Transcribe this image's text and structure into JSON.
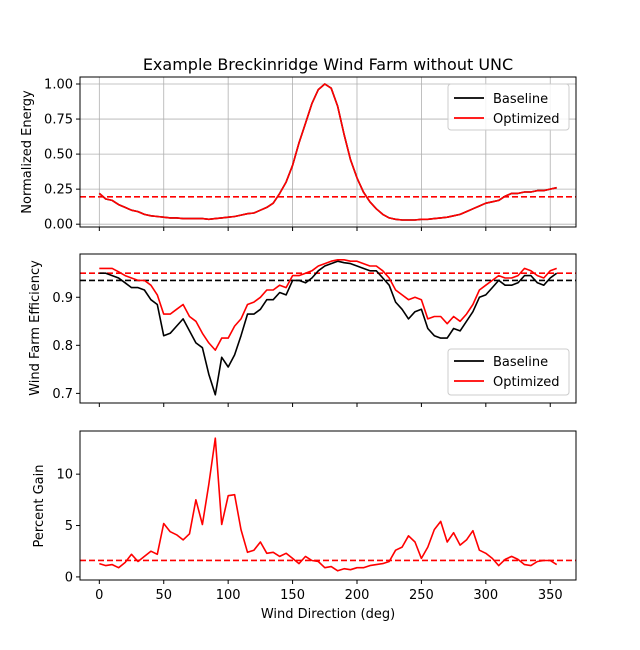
{
  "title": "Example Breckinridge Wind Farm without UNC",
  "colors": {
    "baseline": "#000000",
    "optimized": "#ff0000",
    "grid": "#b0b0b0"
  },
  "chart_data": [
    {
      "type": "line",
      "ylabel": "Normalized Energy",
      "xlim": [
        -15,
        370
      ],
      "ylim": [
        -0.02,
        1.05
      ],
      "yticks": [
        0.0,
        0.25,
        0.5,
        0.75,
        1.0
      ],
      "ytick_labels": [
        "0.00",
        "0.25",
        "0.50",
        "0.75",
        "1.00"
      ],
      "grid": true,
      "legend": "top-right",
      "hline_baseline": null,
      "hline_optimized": 0.195,
      "x": [
        0,
        5,
        10,
        15,
        20,
        25,
        30,
        35,
        40,
        45,
        50,
        55,
        60,
        65,
        70,
        75,
        80,
        85,
        90,
        95,
        100,
        105,
        110,
        115,
        120,
        125,
        130,
        135,
        140,
        145,
        150,
        155,
        160,
        165,
        170,
        175,
        180,
        185,
        190,
        195,
        200,
        205,
        210,
        215,
        220,
        225,
        230,
        235,
        240,
        245,
        250,
        255,
        260,
        265,
        270,
        275,
        280,
        285,
        290,
        295,
        300,
        305,
        310,
        315,
        320,
        325,
        330,
        335,
        340,
        345,
        350,
        355
      ],
      "series": [
        {
          "name": "Baseline",
          "color": "#000000",
          "values": [
            0.22,
            0.18,
            0.17,
            0.14,
            0.12,
            0.1,
            0.09,
            0.07,
            0.06,
            0.055,
            0.05,
            0.045,
            0.045,
            0.04,
            0.04,
            0.04,
            0.04,
            0.035,
            0.04,
            0.045,
            0.05,
            0.055,
            0.065,
            0.075,
            0.08,
            0.1,
            0.12,
            0.15,
            0.22,
            0.3,
            0.42,
            0.58,
            0.72,
            0.86,
            0.96,
            1.0,
            0.97,
            0.84,
            0.64,
            0.46,
            0.33,
            0.23,
            0.16,
            0.11,
            0.07,
            0.045,
            0.035,
            0.03,
            0.03,
            0.03,
            0.035,
            0.035,
            0.04,
            0.045,
            0.05,
            0.06,
            0.07,
            0.09,
            0.11,
            0.13,
            0.15,
            0.16,
            0.17,
            0.2,
            0.22,
            0.22,
            0.23,
            0.23,
            0.24,
            0.24,
            0.25,
            0.26
          ]
        },
        {
          "name": "Optimized",
          "color": "#ff0000",
          "values": [
            0.22,
            0.18,
            0.17,
            0.14,
            0.12,
            0.1,
            0.09,
            0.07,
            0.06,
            0.055,
            0.05,
            0.045,
            0.045,
            0.04,
            0.04,
            0.04,
            0.04,
            0.035,
            0.04,
            0.045,
            0.05,
            0.055,
            0.065,
            0.075,
            0.08,
            0.1,
            0.12,
            0.15,
            0.22,
            0.3,
            0.42,
            0.58,
            0.72,
            0.86,
            0.96,
            1.0,
            0.97,
            0.84,
            0.64,
            0.46,
            0.33,
            0.23,
            0.16,
            0.11,
            0.07,
            0.045,
            0.035,
            0.03,
            0.03,
            0.03,
            0.035,
            0.035,
            0.04,
            0.045,
            0.05,
            0.06,
            0.07,
            0.09,
            0.11,
            0.13,
            0.15,
            0.16,
            0.17,
            0.2,
            0.22,
            0.22,
            0.23,
            0.23,
            0.24,
            0.24,
            0.25,
            0.26
          ]
        }
      ]
    },
    {
      "type": "line",
      "ylabel": "Wind Farm Efficiency",
      "xlim": [
        -15,
        370
      ],
      "ylim": [
        0.68,
        0.99
      ],
      "yticks": [
        0.7,
        0.8,
        0.9
      ],
      "ytick_labels": [
        "0.7",
        "0.8",
        "0.9"
      ],
      "grid": false,
      "legend": "bottom-right",
      "hline_baseline": 0.935,
      "hline_optimized": 0.95,
      "x": [
        0,
        5,
        10,
        15,
        20,
        25,
        30,
        35,
        40,
        45,
        50,
        55,
        60,
        65,
        70,
        75,
        80,
        85,
        90,
        95,
        100,
        105,
        110,
        115,
        120,
        125,
        130,
        135,
        140,
        145,
        150,
        155,
        160,
        165,
        170,
        175,
        180,
        185,
        190,
        195,
        200,
        205,
        210,
        215,
        220,
        225,
        230,
        235,
        240,
        245,
        250,
        255,
        260,
        265,
        270,
        275,
        280,
        285,
        290,
        295,
        300,
        305,
        310,
        315,
        320,
        325,
        330,
        335,
        340,
        345,
        350,
        355
      ],
      "series": [
        {
          "name": "Baseline",
          "color": "#000000",
          "values": [
            0.95,
            0.95,
            0.945,
            0.94,
            0.93,
            0.92,
            0.92,
            0.915,
            0.895,
            0.885,
            0.82,
            0.825,
            0.84,
            0.855,
            0.83,
            0.805,
            0.795,
            0.74,
            0.697,
            0.775,
            0.755,
            0.78,
            0.82,
            0.865,
            0.865,
            0.875,
            0.895,
            0.895,
            0.91,
            0.905,
            0.935,
            0.935,
            0.93,
            0.94,
            0.955,
            0.965,
            0.97,
            0.975,
            0.972,
            0.97,
            0.965,
            0.96,
            0.955,
            0.955,
            0.94,
            0.925,
            0.89,
            0.875,
            0.855,
            0.87,
            0.875,
            0.835,
            0.82,
            0.815,
            0.815,
            0.835,
            0.83,
            0.85,
            0.87,
            0.9,
            0.905,
            0.92,
            0.935,
            0.925,
            0.925,
            0.93,
            0.945,
            0.945,
            0.93,
            0.925,
            0.94,
            0.95
          ]
        },
        {
          "name": "Optimized",
          "color": "#ff0000",
          "values": [
            0.96,
            0.96,
            0.96,
            0.953,
            0.945,
            0.94,
            0.935,
            0.935,
            0.925,
            0.905,
            0.865,
            0.865,
            0.875,
            0.885,
            0.86,
            0.85,
            0.825,
            0.805,
            0.79,
            0.815,
            0.815,
            0.84,
            0.855,
            0.885,
            0.89,
            0.9,
            0.915,
            0.915,
            0.925,
            0.92,
            0.945,
            0.945,
            0.95,
            0.955,
            0.965,
            0.97,
            0.975,
            0.978,
            0.978,
            0.975,
            0.975,
            0.97,
            0.965,
            0.965,
            0.955,
            0.94,
            0.915,
            0.905,
            0.895,
            0.9,
            0.895,
            0.855,
            0.86,
            0.86,
            0.845,
            0.86,
            0.85,
            0.865,
            0.885,
            0.915,
            0.925,
            0.935,
            0.945,
            0.94,
            0.94,
            0.945,
            0.96,
            0.955,
            0.945,
            0.94,
            0.955,
            0.96
          ]
        }
      ]
    },
    {
      "type": "line",
      "ylabel": "Percent Gain",
      "xlabel": "Wind Direction (deg)",
      "xlim": [
        -15,
        370
      ],
      "ylim": [
        -0.3,
        14.2
      ],
      "yticks": [
        0,
        5,
        10
      ],
      "ytick_labels": [
        "0",
        "5",
        "10"
      ],
      "xticks": [
        0,
        50,
        100,
        150,
        200,
        250,
        300,
        350
      ],
      "xtick_labels": [
        "0",
        "50",
        "100",
        "150",
        "200",
        "250",
        "300",
        "350"
      ],
      "grid": false,
      "legend": null,
      "hline_optimized": 1.6,
      "x": [
        0,
        5,
        10,
        15,
        20,
        25,
        30,
        35,
        40,
        45,
        50,
        55,
        60,
        65,
        70,
        75,
        80,
        85,
        90,
        95,
        100,
        105,
        110,
        115,
        120,
        125,
        130,
        135,
        140,
        145,
        150,
        155,
        160,
        165,
        170,
        175,
        180,
        185,
        190,
        195,
        200,
        205,
        210,
        215,
        220,
        225,
        230,
        235,
        240,
        245,
        250,
        255,
        260,
        265,
        270,
        275,
        280,
        285,
        290,
        295,
        300,
        305,
        310,
        315,
        320,
        325,
        330,
        335,
        340,
        345,
        350,
        355
      ],
      "series": [
        {
          "name": "Optimized",
          "color": "#ff0000",
          "values": [
            1.3,
            1.1,
            1.2,
            0.9,
            1.4,
            2.2,
            1.5,
            2.0,
            2.5,
            2.2,
            5.2,
            4.4,
            4.1,
            3.6,
            4.2,
            7.5,
            5.1,
            9.0,
            13.5,
            5.1,
            7.9,
            8.0,
            4.6,
            2.4,
            2.6,
            3.4,
            2.3,
            2.4,
            2.0,
            2.3,
            1.8,
            1.3,
            2.0,
            1.6,
            1.5,
            0.9,
            1.0,
            0.6,
            0.8,
            0.7,
            0.9,
            0.9,
            1.1,
            1.2,
            1.3,
            1.5,
            2.6,
            2.9,
            4.0,
            3.4,
            1.8,
            2.9,
            4.6,
            5.4,
            3.4,
            4.3,
            3.1,
            3.6,
            4.5,
            2.6,
            2.3,
            1.8,
            1.1,
            1.7,
            2.0,
            1.7,
            1.2,
            1.1,
            1.5,
            1.6,
            1.6,
            1.2
          ]
        }
      ]
    }
  ]
}
